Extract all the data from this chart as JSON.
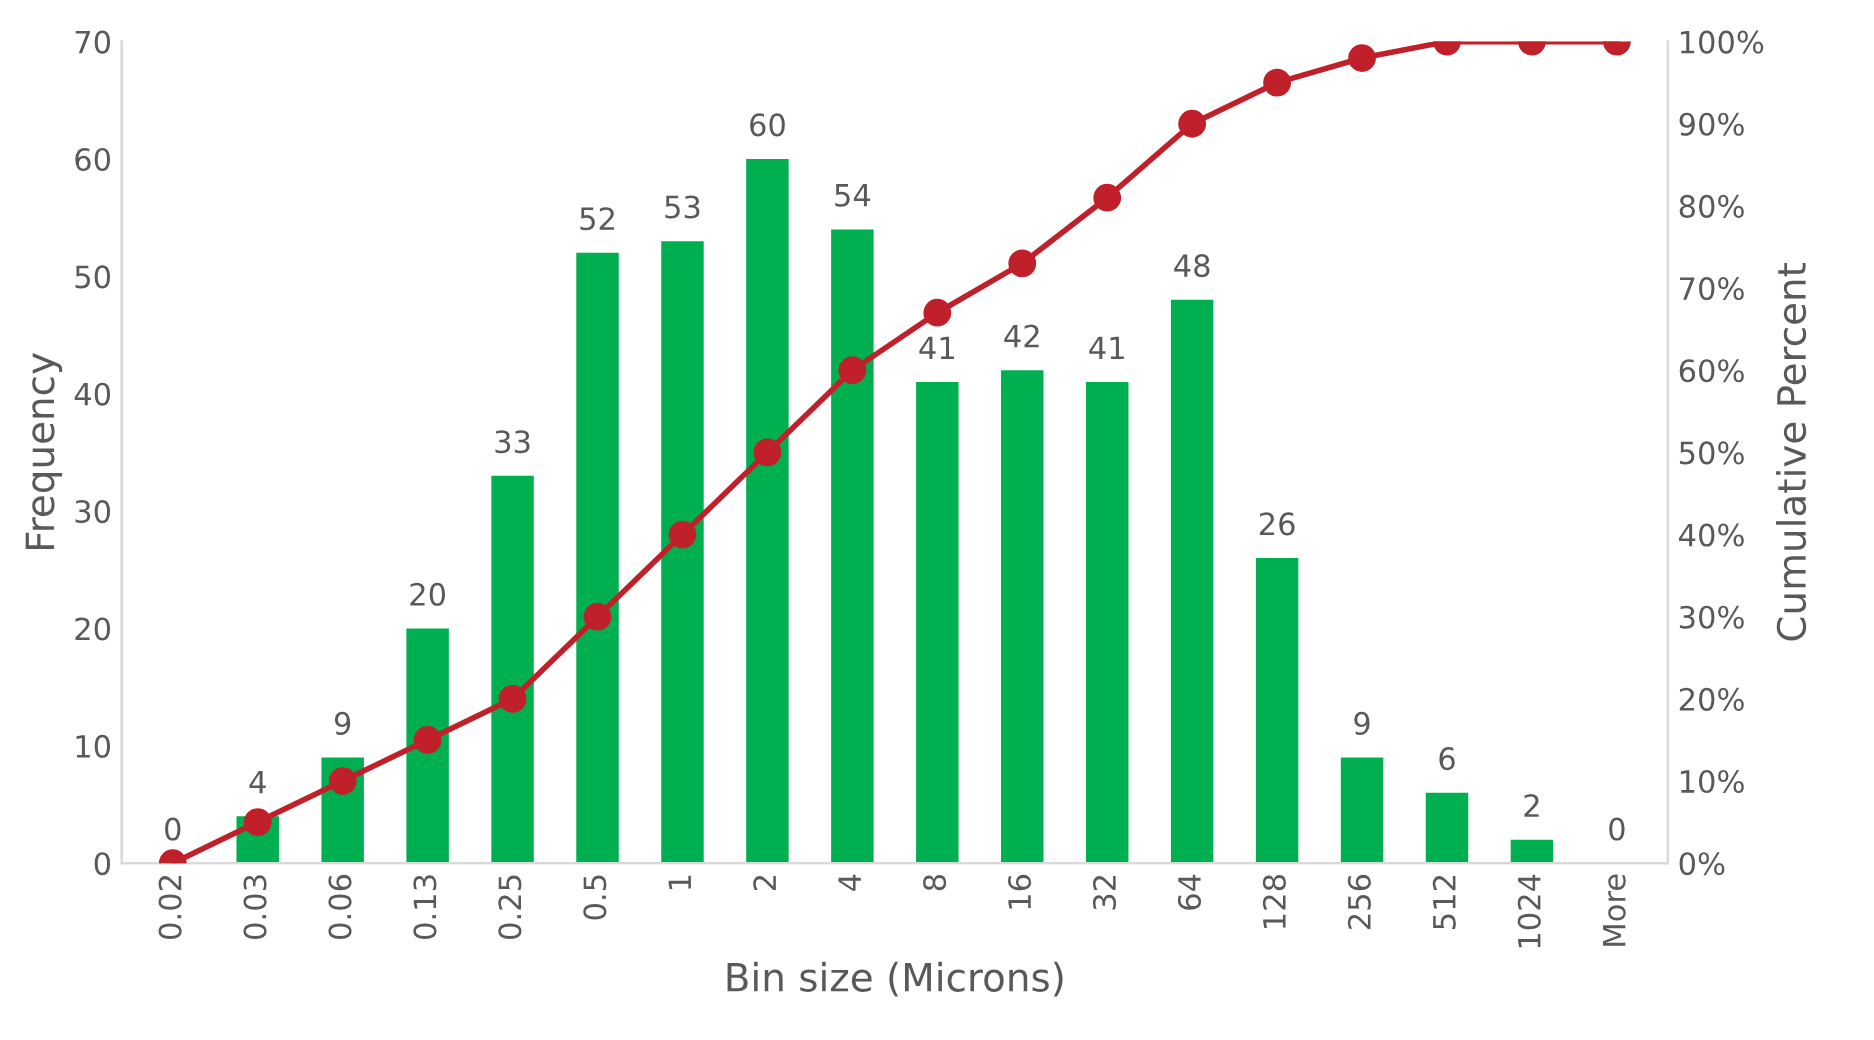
{
  "chart_data": {
    "type": "bar",
    "xlabel": "Bin size (Microns)",
    "ylabel": "Frequency",
    "y2label": "Cumulative Percent",
    "categories": [
      "0.02",
      "0.03",
      "0.06",
      "0.13",
      "0.25",
      "0.5",
      "1",
      "2",
      "4",
      "8",
      "16",
      "32",
      "64",
      "128",
      "256",
      "512",
      "1024",
      "More"
    ],
    "series": [
      {
        "color": "#00b050",
        "values": [
          0,
          4,
          9,
          20,
          33,
          52,
          53,
          60,
          54,
          41,
          42,
          41,
          48,
          26,
          9,
          6,
          2,
          0
        ],
        "data_labels": true
      },
      {
        "type": "line",
        "axis": "y2",
        "color": "#c0202a",
        "marker": "circle",
        "line_style": "solid",
        "values": [
          0,
          5,
          10,
          15,
          20,
          30,
          40,
          50,
          60,
          67,
          73,
          81,
          90,
          95,
          98,
          100,
          100,
          100
        ]
      }
    ],
    "ylim": [
      0,
      70
    ],
    "yticks": [
      0,
      10,
      20,
      30,
      40,
      50,
      60,
      70
    ],
    "y2lim": [
      0,
      100
    ],
    "y2ticks": [
      {
        "value": 0,
        "label": "0%"
      },
      {
        "value": 10,
        "label": "10%"
      },
      {
        "value": 20,
        "label": "20%"
      },
      {
        "value": 30,
        "label": "30%"
      },
      {
        "value": 40,
        "label": "40%"
      },
      {
        "value": 50,
        "label": "50%"
      },
      {
        "value": 60,
        "label": "60%"
      },
      {
        "value": 70,
        "label": "70%"
      },
      {
        "value": 80,
        "label": "80%"
      },
      {
        "value": 90,
        "label": "90%"
      },
      {
        "value": 100,
        "label": "100%"
      }
    ],
    "grid": false,
    "legend": false
  }
}
